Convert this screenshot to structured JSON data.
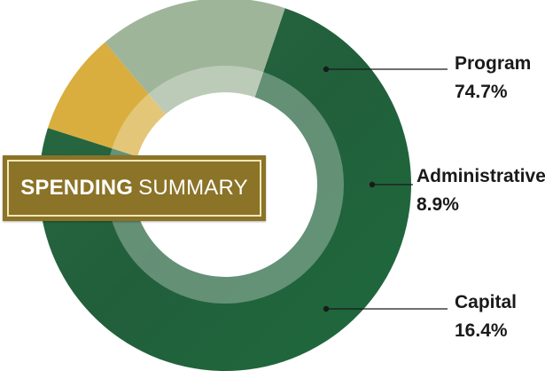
{
  "title": {
    "bold": "SPENDING",
    "normal": "SUMMARY"
  },
  "colors": {
    "program": "#236b41",
    "administrative": "#d9ae3e",
    "capital": "#9eb59a",
    "title_bg": "#8b7327"
  },
  "chart_data": {
    "type": "pie",
    "variant": "donut",
    "categories": [
      "Program",
      "Administrative",
      "Capital"
    ],
    "values": [
      74.7,
      8.9,
      16.4
    ],
    "labels": [
      "74.7%",
      "8.9%",
      "16.4%"
    ],
    "legend": "none"
  }
}
